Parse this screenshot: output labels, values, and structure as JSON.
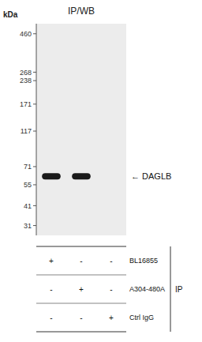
{
  "chart_data": {
    "type": "blot",
    "title": "IP/WB",
    "y_label": "kDa",
    "log": "y",
    "ylim": [
      27,
      530
    ],
    "yticks": [
      460,
      268,
      238,
      171,
      117,
      71,
      55,
      41,
      31
    ],
    "categories": [
      null,
      null,
      null
    ],
    "values": [
      62,
      62,
      null
    ],
    "annotations": [
      {
        "text": "← DAGLB",
        "y": 62
      }
    ],
    "table": {
      "rows": [
        {
          "label": "BL16855",
          "values": [
            "+",
            "-",
            "-"
          ]
        },
        {
          "label": "A304-480A",
          "values": [
            "-",
            "+",
            "-"
          ]
        },
        {
          "label": "Ctrl IgG",
          "values": [
            "-",
            "-",
            "+"
          ]
        }
      ],
      "group_label": "IP"
    }
  }
}
